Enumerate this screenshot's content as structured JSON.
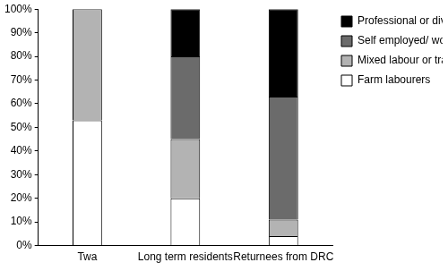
{
  "chart_data": {
    "type": "bar",
    "stacked": true,
    "legend": "right",
    "grid": false,
    "categories": [
      "Twa",
      "Long term residents",
      "Returnees from DRC"
    ],
    "series": [
      {
        "name": "Farm labourers",
        "color": "#ffffff",
        "values": [
          53,
          20,
          4
        ]
      },
      {
        "name": "Mixed labour or traders",
        "color": "#b3b3b3",
        "values": [
          47,
          25,
          7
        ]
      },
      {
        "name": "Self employed/ workers",
        "color": "#6b6b6b",
        "values": [
          0,
          35,
          52
        ]
      },
      {
        "name": "Professional or diversified",
        "color": "#000000",
        "values": [
          0,
          20,
          37
        ]
      }
    ],
    "ylim": [
      0,
      100
    ],
    "yticks": [
      {
        "value": 0,
        "label": "0%"
      },
      {
        "value": 10,
        "label": "10%"
      },
      {
        "value": 20,
        "label": "20%"
      },
      {
        "value": 30,
        "label": "30%"
      },
      {
        "value": 40,
        "label": "40%"
      },
      {
        "value": 50,
        "label": "50%"
      },
      {
        "value": 60,
        "label": "60%"
      },
      {
        "value": 70,
        "label": "70%"
      },
      {
        "value": 80,
        "label": "80%"
      },
      {
        "value": 90,
        "label": "90%"
      },
      {
        "value": 100,
        "label": "100%"
      }
    ]
  }
}
